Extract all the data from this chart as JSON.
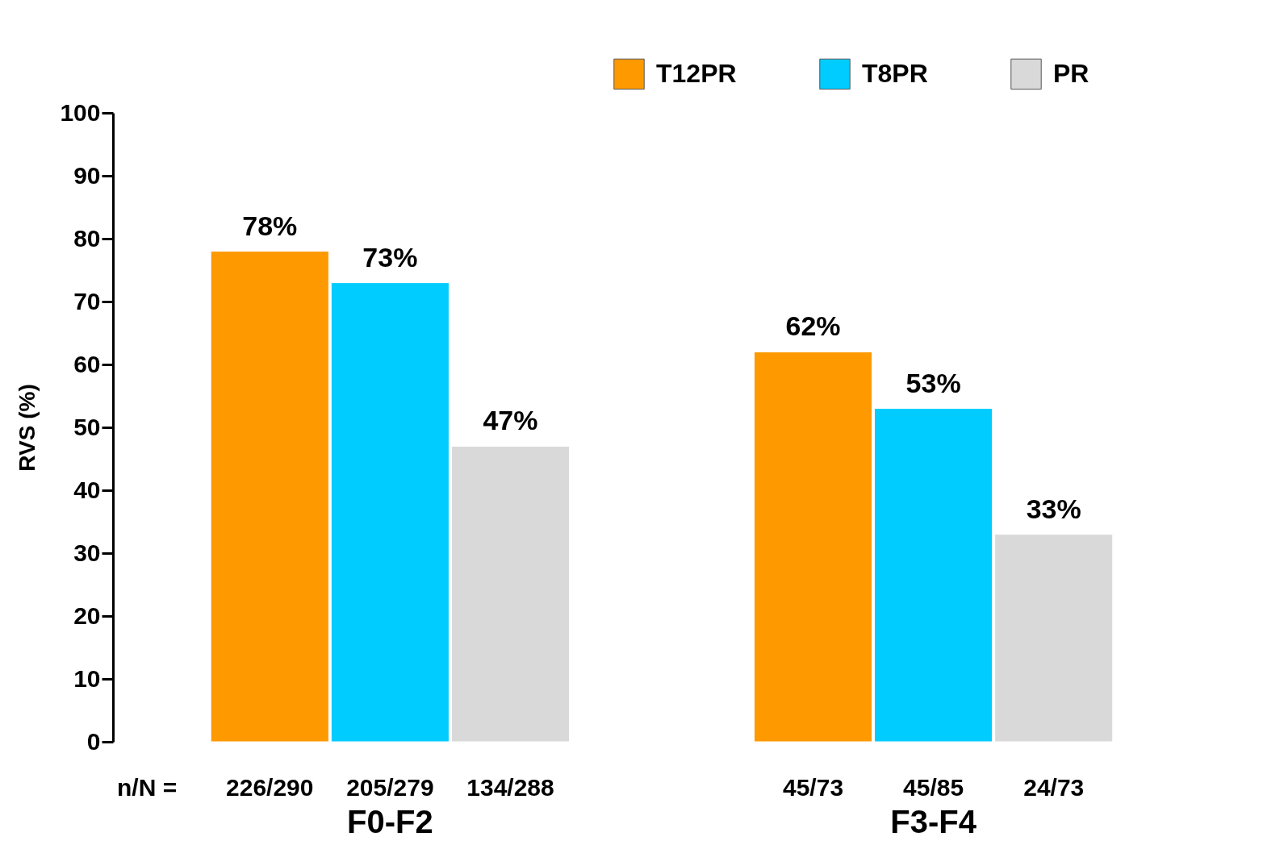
{
  "chart_data": {
    "type": "bar",
    "ylabel": "RVS (%)",
    "categories": [
      "F0-F2",
      "F3-F4"
    ],
    "series": [
      {
        "name": "T12PR",
        "color": "#ff9900",
        "values": [
          78,
          62
        ],
        "value_labels": [
          "78%",
          "62%"
        ]
      },
      {
        "name": "T8PR",
        "color": "#00ccff",
        "values": [
          73,
          53
        ],
        "value_labels": [
          "73%",
          "53%"
        ]
      },
      {
        "name": "PR",
        "color": "#d9d9d9",
        "values": [
          47,
          33
        ],
        "value_labels": [
          "47%",
          "33%"
        ]
      }
    ],
    "ylim": [
      0,
      100
    ],
    "yticks": [
      0,
      10,
      20,
      30,
      40,
      50,
      60,
      70,
      80,
      90,
      100
    ],
    "grid": false,
    "legend": "top right",
    "annotations": [
      "n/N =",
      "226/290",
      "205/279",
      "134/288",
      "45/73",
      "45/85",
      "24/73"
    ]
  }
}
